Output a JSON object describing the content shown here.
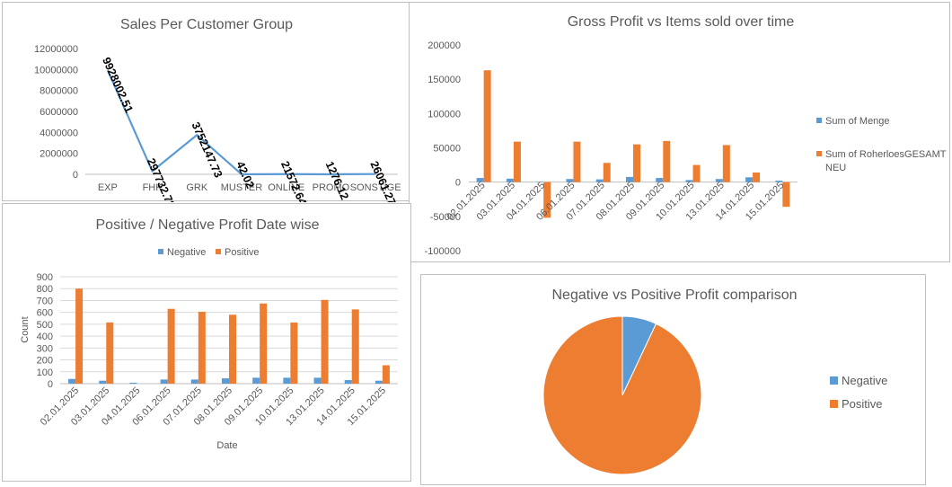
{
  "colors": {
    "blue": "#5b9bd5",
    "orange": "#ed7d31"
  },
  "chart_data": [
    {
      "type": "line",
      "title": "Sales Per Customer Group",
      "categories": [
        "EXP",
        "FHK",
        "GRK",
        "MUSTER",
        "ONLINE",
        "PROMO",
        "SONSTIGE"
      ],
      "values": [
        9928002.51,
        297732.78,
        3752147.73,
        42.02,
        21572.64,
        1276.12,
        26061.27
      ],
      "data_labels": [
        "9928002.51",
        "297732.78",
        "3752147.73",
        "42.02",
        "21572.64",
        "1276.12",
        "26061.27"
      ],
      "y_ticks": [
        "0",
        "2000000",
        "4000000",
        "6000000",
        "8000000",
        "10000000",
        "12000000"
      ],
      "ylim": [
        0,
        12000000
      ],
      "grid": false
    },
    {
      "type": "bar",
      "title": "Gross Profit vs Items sold over time",
      "categories": [
        "02.01.2025",
        "03.01.2025",
        "04.01.2025",
        "06.01.2025",
        "07.01.2025",
        "08.01.2025",
        "09.01.2025",
        "10.01.2025",
        "13.01.2025",
        "14.01.2025",
        "15.01.2025"
      ],
      "series": [
        {
          "name": "Sum of Menge",
          "color": "#5b9bd5",
          "values": [
            6000,
            5000,
            300,
            4500,
            4000,
            7500,
            6000,
            3000,
            4500,
            7000,
            2000
          ]
        },
        {
          "name": "Sum of RoherloesGESAMT NEU",
          "color": "#ed7d31",
          "values": [
            163000,
            59000,
            -52000,
            59000,
            28000,
            55000,
            60000,
            25000,
            54000,
            14000,
            -36000
          ]
        }
      ],
      "legend_lines": [
        [
          "Sum of Menge"
        ],
        [
          "Sum of RoherloesGESAMT",
          "NEU"
        ]
      ],
      "y_ticks": [
        "-100000",
        "-50000",
        "0",
        "50000",
        "100000",
        "150000",
        "200000"
      ],
      "ylim": [
        -100000,
        200000
      ],
      "legend": "right"
    },
    {
      "type": "bar",
      "title": "Positive / Negative Profit Date wise",
      "xlabel": "Date",
      "ylabel": "Count",
      "categories": [
        "02.01.2025",
        "03.01.2025",
        "04.01.2025",
        "06.01.2025",
        "07.01.2025",
        "08.01.2025",
        "09.01.2025",
        "10.01.2025",
        "13.01.2025",
        "14.01.2025",
        "15.01.2025"
      ],
      "series": [
        {
          "name": "Negative",
          "color": "#5b9bd5",
          "values": [
            40,
            25,
            8,
            35,
            35,
            45,
            50,
            50,
            50,
            30,
            25
          ]
        },
        {
          "name": "Positive",
          "color": "#ed7d31",
          "values": [
            800,
            515,
            0,
            630,
            605,
            580,
            675,
            515,
            705,
            625,
            155
          ]
        }
      ],
      "y_ticks": [
        "0",
        "100",
        "200",
        "300",
        "400",
        "500",
        "600",
        "700",
        "800",
        "900"
      ],
      "ylim": [
        0,
        900
      ],
      "legend": "top"
    },
    {
      "type": "pie",
      "title": "Negative vs Positive Profit comparison",
      "slices": [
        {
          "name": "Negative",
          "value": 7,
          "color": "#5b9bd5"
        },
        {
          "name": "Positive",
          "value": 93,
          "color": "#ed7d31"
        }
      ],
      "legend": "right"
    }
  ]
}
